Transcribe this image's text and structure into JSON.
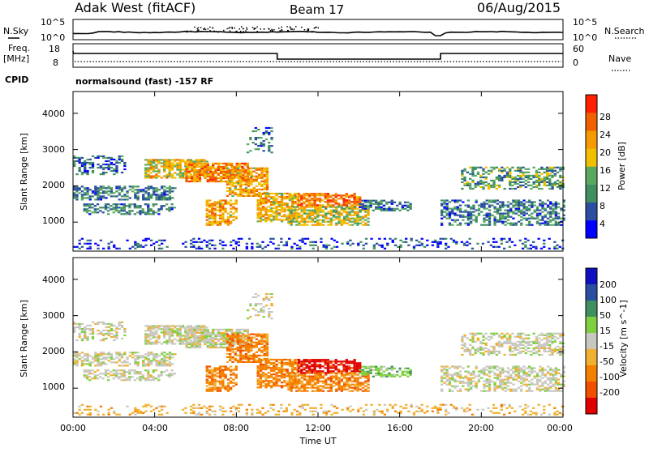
{
  "header": {
    "station": "Adak West (fitACF)",
    "beam": "Beam 17",
    "date": "06/Aug/2015"
  },
  "left_labels": {
    "nsky": "N.Sky",
    "nsky_hi": "10^5",
    "nsky_lo": "10^0",
    "freq": "Freq.",
    "freq_unit": "[MHz]",
    "freq_hi": "18",
    "freq_lo": "8",
    "cpid": "CPID"
  },
  "right_labels": {
    "nsearch": "N.Search",
    "nsearch_hi": "10^5",
    "nsearch_lo": "10^0",
    "nave": "Nave",
    "nave_hi": "60",
    "nave_lo": "0"
  },
  "cpid_text": "normalsound (fast) -157 RF",
  "colors": {
    "power_scale": [
      "#0000ff",
      "#2a4fa0",
      "#3f8f60",
      "#5aa860",
      "#f0c000",
      "#f59a00",
      "#f06000",
      "#ff2000"
    ],
    "velocity_scale": [
      "#1010c0",
      "#2a4fa0",
      "#3f8f60",
      "#7fd040",
      "#c8c8c0",
      "#f0b030",
      "#f58000",
      "#f05000",
      "#e00000"
    ]
  },
  "chart_data": [
    {
      "type": "heatmap",
      "panel": "power",
      "ylabel": "Slant Range [km]",
      "ylim": [
        200,
        4600
      ],
      "yticks": [
        "1000",
        "2000",
        "3000",
        "4000"
      ],
      "xlim": [
        "00:00",
        "24:00"
      ],
      "colorbar": {
        "label": "Power [dB]",
        "ticks": [
          "4",
          "8",
          "12",
          "16",
          "20",
          "24",
          "28"
        ]
      }
    },
    {
      "type": "heatmap",
      "panel": "velocity",
      "ylabel": "Slant Range [km]",
      "ylim": [
        200,
        4600
      ],
      "yticks": [
        "1000",
        "2000",
        "3000",
        "4000"
      ],
      "xlabel": "Time UT",
      "xticks": [
        "00:00",
        "04:00",
        "08:00",
        "12:00",
        "16:00",
        "20:00",
        "00:00"
      ],
      "colorbar": {
        "label": "Velocity [m s^-1]",
        "ticks": [
          "200",
          "100",
          "50",
          "15",
          "-15",
          "-50",
          "-100",
          "-200"
        ]
      }
    }
  ]
}
